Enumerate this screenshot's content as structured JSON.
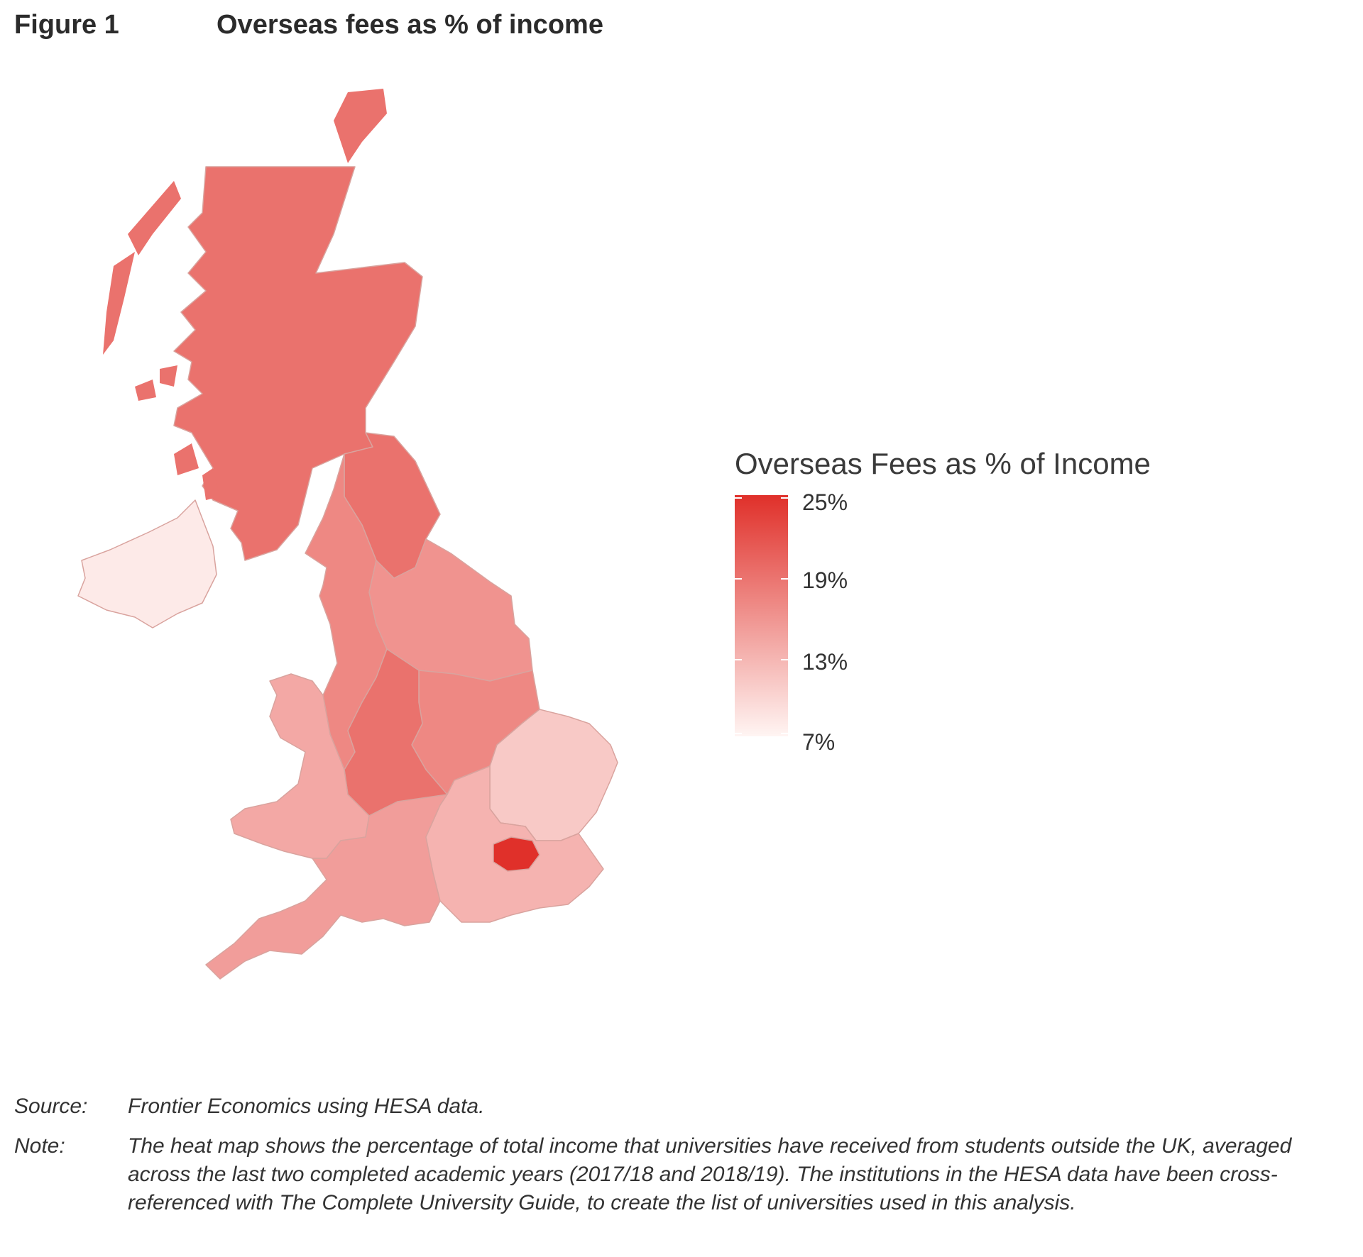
{
  "figure": {
    "label": "Figure 1",
    "title": "Overseas fees as % of income"
  },
  "legend": {
    "title": "Overseas Fees as % of Income",
    "ticks": [
      "25%",
      "19%",
      "13%",
      "7%"
    ],
    "scale_min": 7,
    "scale_max": 25,
    "color_low": "#fff5f3",
    "color_high": "#e0302a"
  },
  "regions": [
    {
      "name": "Scotland",
      "value": 19
    },
    {
      "name": "North East",
      "value": 19
    },
    {
      "name": "Northern Ireland",
      "value": 8
    },
    {
      "name": "North West",
      "value": 17
    },
    {
      "name": "Yorkshire and the Humber",
      "value": 16
    },
    {
      "name": "East Midlands",
      "value": 17
    },
    {
      "name": "West Midlands",
      "value": 19
    },
    {
      "name": "Wales",
      "value": 14
    },
    {
      "name": "East of England",
      "value": 11
    },
    {
      "name": "South West",
      "value": 15
    },
    {
      "name": "South East",
      "value": 13
    },
    {
      "name": "London",
      "value": 25
    }
  ],
  "notes": {
    "source_label": "Source:",
    "source_text": "Frontier Economics using HESA data.",
    "note_label": "Note:",
    "note_text": "The heat map shows the percentage of total income that universities have received from students outside the UK, averaged across the last two completed academic years (2017/18 and 2018/19). The institutions in the HESA data have been cross-referenced with The Complete University Guide, to create the list of universities used in this analysis."
  }
}
